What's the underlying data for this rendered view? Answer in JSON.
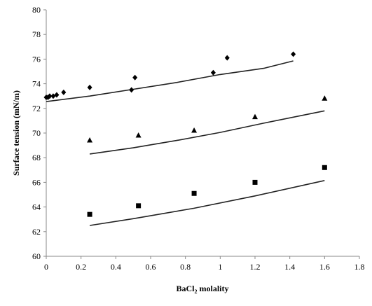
{
  "chart_data": {
    "type": "scatter",
    "title": "",
    "xlabel": {
      "prefix": "BaCl",
      "subscript": "2",
      "suffix": " molality"
    },
    "ylabel": "Surface tension (mN/m)",
    "xlim": [
      0,
      1.8
    ],
    "ylim": [
      60,
      80
    ],
    "x_ticks": [
      0,
      0.2,
      0.4,
      0.6,
      0.8,
      1,
      1.2,
      1.4,
      1.6,
      1.8
    ],
    "x_tick_labels": [
      "0",
      "0.2",
      "0.4",
      "0.6",
      "0.8",
      "1",
      "1.2",
      "1.4",
      "1.6",
      "1.8"
    ],
    "y_ticks": [
      60,
      62,
      64,
      66,
      68,
      70,
      72,
      74,
      76,
      78,
      80
    ],
    "y_tick_labels": [
      "60",
      "62",
      "64",
      "66",
      "68",
      "70",
      "72",
      "74",
      "76",
      "78",
      "80"
    ],
    "grid": false,
    "legend": "none",
    "series": [
      {
        "marker": "diamond",
        "color": "#000000",
        "points": [
          [
            0.0,
            72.9
          ],
          [
            0.01,
            72.9
          ],
          [
            0.02,
            73.0
          ],
          [
            0.04,
            73.0
          ],
          [
            0.06,
            73.1
          ],
          [
            0.1,
            73.3
          ],
          [
            0.25,
            73.7
          ],
          [
            0.49,
            73.5
          ],
          [
            0.51,
            74.5
          ],
          [
            0.96,
            74.9
          ],
          [
            1.04,
            76.1
          ],
          [
            1.42,
            76.4
          ]
        ],
        "fit": [
          [
            0.0,
            72.55
          ],
          [
            0.25,
            73.0
          ],
          [
            0.5,
            73.55
          ],
          [
            0.75,
            74.1
          ],
          [
            1.0,
            74.75
          ],
          [
            1.25,
            75.25
          ],
          [
            1.42,
            75.85
          ]
        ]
      },
      {
        "marker": "triangle",
        "color": "#000000",
        "points": [
          [
            0.25,
            69.4
          ],
          [
            0.53,
            69.8
          ],
          [
            0.85,
            70.2
          ],
          [
            1.2,
            71.3
          ],
          [
            1.6,
            72.8
          ]
        ],
        "fit": [
          [
            0.25,
            68.3
          ],
          [
            0.5,
            68.8
          ],
          [
            0.75,
            69.4
          ],
          [
            1.0,
            70.05
          ],
          [
            1.25,
            70.8
          ],
          [
            1.6,
            71.8
          ]
        ]
      },
      {
        "marker": "square",
        "color": "#000000",
        "points": [
          [
            0.25,
            63.4
          ],
          [
            0.53,
            64.1
          ],
          [
            0.85,
            65.1
          ],
          [
            1.2,
            66.0
          ],
          [
            1.6,
            67.2
          ]
        ],
        "fit": [
          [
            0.25,
            62.5
          ],
          [
            0.5,
            63.05
          ],
          [
            0.85,
            63.9
          ],
          [
            1.2,
            64.9
          ],
          [
            1.6,
            66.15
          ]
        ]
      }
    ]
  }
}
